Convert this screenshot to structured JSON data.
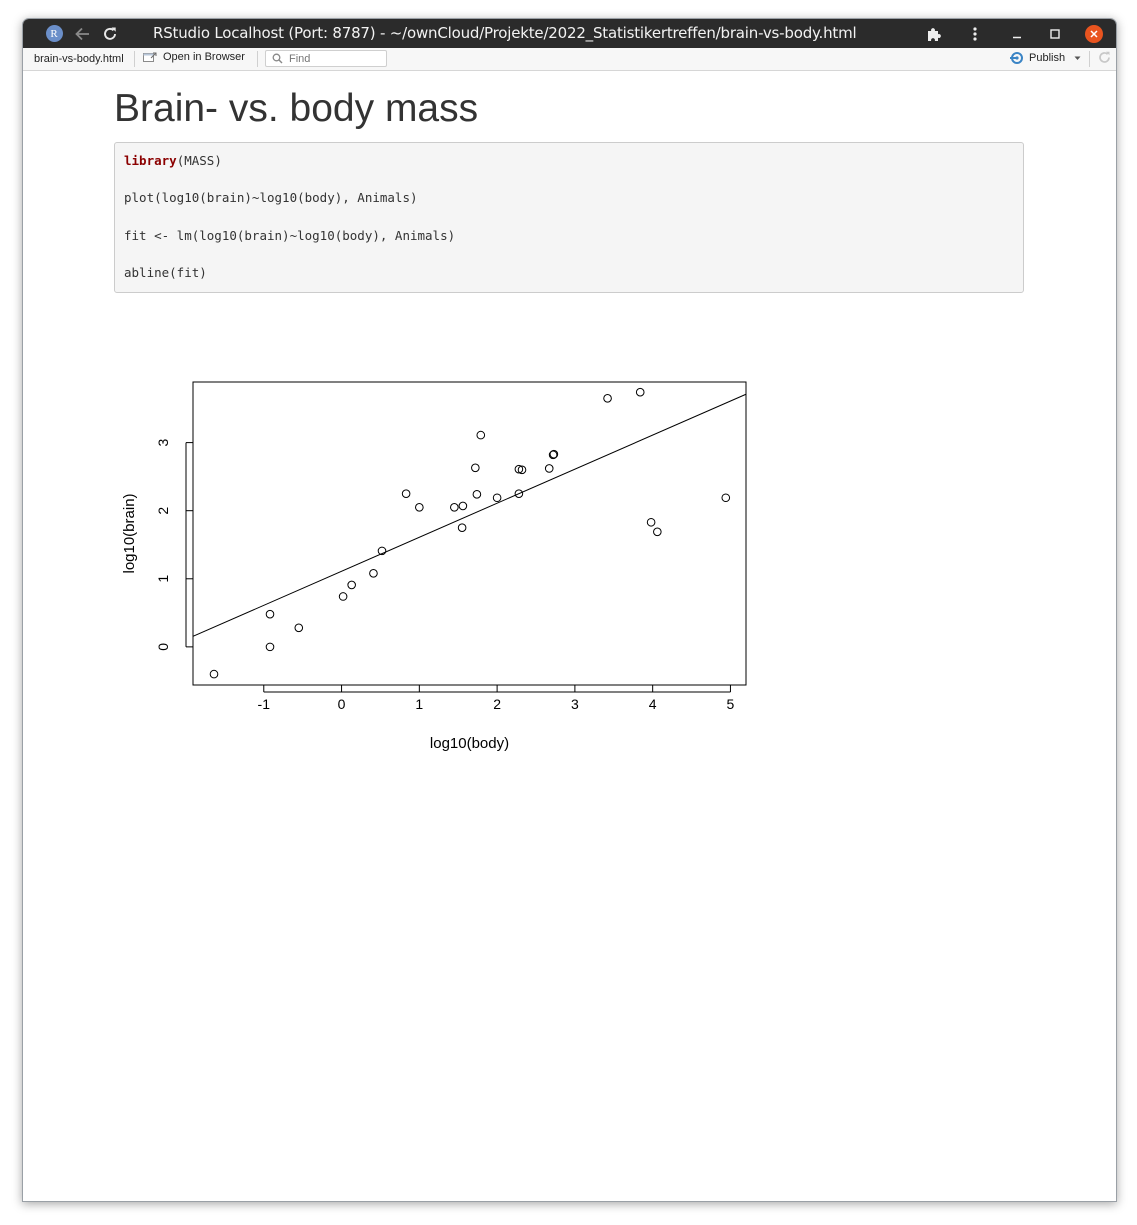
{
  "window": {
    "title": "RStudio Localhost (Port: 8787) - ~/ownCloud/Projekte/2022_Statistikertreffen/brain-vs-body.html",
    "logo_letter": "R"
  },
  "toolbar": {
    "file_tab": "brain-vs-body.html",
    "open_in_browser": "Open in Browser",
    "find_placeholder": "Find",
    "publish": "Publish"
  },
  "doc": {
    "heading": "Brain- vs. body mass",
    "code": {
      "line1_keyword": "library",
      "line1_rest": "(MASS)",
      "line2": "plot(log10(brain)~log10(body), Animals)",
      "line3": "fit <- lm(log10(brain)~log10(body), Animals)",
      "line4": "abline(fit)"
    }
  },
  "chart_data": {
    "type": "scatter",
    "title": "",
    "xlabel": "log10(body)",
    "ylabel": "log10(brain)",
    "xlim": [
      -1.91,
      5.2
    ],
    "ylim": [
      -0.56,
      3.89
    ],
    "xticks": [
      -1,
      0,
      1,
      2,
      3,
      4,
      5
    ],
    "yticks": [
      0,
      1,
      2,
      3
    ],
    "grid": false,
    "points": [
      {
        "x": -1.64,
        "y": -0.4
      },
      {
        "x": -0.92,
        "y": 0.48
      },
      {
        "x": -0.92,
        "y": 0.0
      },
      {
        "x": -0.55,
        "y": 0.28
      },
      {
        "x": 0.02,
        "y": 0.74
      },
      {
        "x": 0.13,
        "y": 0.91
      },
      {
        "x": 0.41,
        "y": 1.08
      },
      {
        "x": 0.52,
        "y": 1.41
      },
      {
        "x": 0.83,
        "y": 2.25
      },
      {
        "x": 1.0,
        "y": 2.05
      },
      {
        "x": 1.45,
        "y": 2.05
      },
      {
        "x": 1.56,
        "y": 2.07
      },
      {
        "x": 1.55,
        "y": 1.75
      },
      {
        "x": 1.72,
        "y": 2.63
      },
      {
        "x": 1.74,
        "y": 2.24
      },
      {
        "x": 1.79,
        "y": 3.11
      },
      {
        "x": 2.0,
        "y": 2.19
      },
      {
        "x": 2.28,
        "y": 2.61
      },
      {
        "x": 2.32,
        "y": 2.6
      },
      {
        "x": 2.28,
        "y": 2.25
      },
      {
        "x": 2.67,
        "y": 2.62
      },
      {
        "x": 2.72,
        "y": 2.82
      },
      {
        "x": 2.73,
        "y": 2.83
      },
      {
        "x": 3.42,
        "y": 3.65
      },
      {
        "x": 3.84,
        "y": 3.74
      },
      {
        "x": 3.98,
        "y": 1.83
      },
      {
        "x": 4.06,
        "y": 1.69
      },
      {
        "x": 4.94,
        "y": 2.19
      }
    ],
    "fit_line": {
      "intercept": 1.11,
      "slope": 0.5
    }
  }
}
